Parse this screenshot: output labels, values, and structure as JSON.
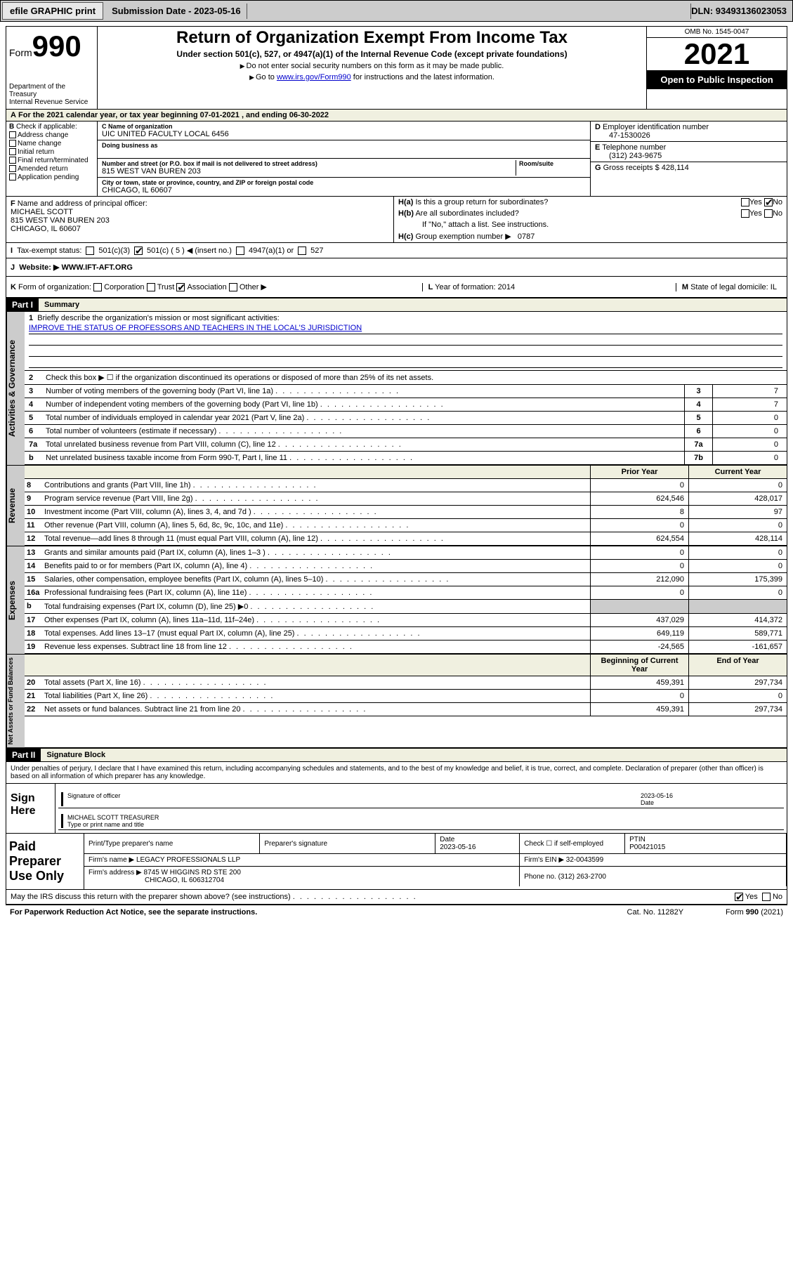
{
  "toolbar": {
    "efile_btn": "efile GRAPHIC print",
    "sub_date_label": "Submission Date - ",
    "sub_date": "2023-05-16",
    "dln_label": "DLN: ",
    "dln": "93493136023053"
  },
  "header": {
    "form_label": "Form",
    "form_num": "990",
    "dept": "Department of the Treasury\nInternal Revenue Service",
    "title": "Return of Organization Exempt From Income Tax",
    "sub": "Under section 501(c), 527, or 4947(a)(1) of the Internal Revenue Code (except private foundations)",
    "note1": "Do not enter social security numbers on this form as it may be made public.",
    "note2_a": "Go to ",
    "note2_link": "www.irs.gov/Form990",
    "note2_b": " for instructions and the latest information.",
    "omb": "OMB No. 1545-0047",
    "year": "2021",
    "inspect": "Open to Public Inspection"
  },
  "row_a": "For the 2021 calendar year, or tax year beginning 07-01-2021  , and ending 06-30-2022",
  "b": {
    "hdr": "Check if applicable:",
    "items": [
      "Address change",
      "Name change",
      "Initial return",
      "Final return/terminated",
      "Amended return",
      "Application pending"
    ]
  },
  "c": {
    "name_lbl": "Name of organization",
    "name": "UIC UNITED FACULTY LOCAL 6456",
    "dba_lbl": "Doing business as",
    "dba": "",
    "addr_lbl": "Number and street (or P.O. box if mail is not delivered to street address)",
    "addr": "815 WEST VAN BUREN 203",
    "room_lbl": "Room/suite",
    "city_lbl": "City or town, state or province, country, and ZIP or foreign postal code",
    "city": "CHICAGO, IL  60607"
  },
  "d": {
    "ein_lbl": "Employer identification number",
    "ein": "47-1530026",
    "phone_lbl": "Telephone number",
    "phone": "(312) 243-9675",
    "gross_lbl": "Gross receipts $",
    "gross": "428,114"
  },
  "f": {
    "lbl": "Name and address of principal officer:",
    "name": "MICHAEL SCOTT",
    "addr": "815 WEST VAN BUREN 203",
    "city": "CHICAGO, IL  60607"
  },
  "h": {
    "a_lbl": "Is this a group return for subordinates?",
    "a_no": "No",
    "b_lbl": "Are all subordinates included?",
    "b_note": "If \"No,\" attach a list. See instructions.",
    "c_lbl": "Group exemption number ▶",
    "c_val": "0787",
    "yes": "Yes",
    "no": "No"
  },
  "i": {
    "lbl": "Tax-exempt status:",
    "o1": "501(c)(3)",
    "o2": "501(c) ( 5 ) ◀ (insert no.)",
    "o3": "4947(a)(1) or",
    "o4": "527"
  },
  "j": {
    "lbl": "Website: ▶",
    "val": "WWW.IFT-AFT.ORG"
  },
  "k": {
    "lbl": "Form of organization:",
    "o1": "Corporation",
    "o2": "Trust",
    "o3": "Association",
    "o4": "Other ▶",
    "l_lbl": "Year of formation:",
    "l_val": "2014",
    "m_lbl": "State of legal domicile:",
    "m_val": "IL"
  },
  "part1": {
    "hdr": "Part I",
    "title": "Summary",
    "side_gov": "Activities & Governance",
    "side_rev": "Revenue",
    "side_exp": "Expenses",
    "side_net": "Net Assets or Fund Balances",
    "l1": "Briefly describe the organization's mission or most significant activities:",
    "l1_val": "IMPROVE THE STATUS OF PROFESSORS AND TEACHERS IN THE LOCAL'S JURISDICTION",
    "l2": "Check this box ▶ ☐ if the organization discontinued its operations or disposed of more than 25% of its net assets.",
    "rows_gov": [
      {
        "n": "3",
        "t": "Number of voting members of the governing body (Part VI, line 1a)",
        "b": "3",
        "v": "7"
      },
      {
        "n": "4",
        "t": "Number of independent voting members of the governing body (Part VI, line 1b)",
        "b": "4",
        "v": "7"
      },
      {
        "n": "5",
        "t": "Total number of individuals employed in calendar year 2021 (Part V, line 2a)",
        "b": "5",
        "v": "0"
      },
      {
        "n": "6",
        "t": "Total number of volunteers (estimate if necessary)",
        "b": "6",
        "v": "0"
      },
      {
        "n": "7a",
        "t": "Total unrelated business revenue from Part VIII, column (C), line 12",
        "b": "7a",
        "v": "0"
      },
      {
        "n": "b",
        "t": "Net unrelated business taxable income from Form 990-T, Part I, line 11",
        "b": "7b",
        "v": "0"
      }
    ],
    "col_py": "Prior Year",
    "col_cy": "Current Year",
    "rows_rev": [
      {
        "n": "8",
        "t": "Contributions and grants (Part VIII, line 1h)",
        "py": "0",
        "cy": "0"
      },
      {
        "n": "9",
        "t": "Program service revenue (Part VIII, line 2g)",
        "py": "624,546",
        "cy": "428,017"
      },
      {
        "n": "10",
        "t": "Investment income (Part VIII, column (A), lines 3, 4, and 7d )",
        "py": "8",
        "cy": "97"
      },
      {
        "n": "11",
        "t": "Other revenue (Part VIII, column (A), lines 5, 6d, 8c, 9c, 10c, and 11e)",
        "py": "0",
        "cy": "0"
      },
      {
        "n": "12",
        "t": "Total revenue—add lines 8 through 11 (must equal Part VIII, column (A), line 12)",
        "py": "624,554",
        "cy": "428,114"
      }
    ],
    "rows_exp": [
      {
        "n": "13",
        "t": "Grants and similar amounts paid (Part IX, column (A), lines 1–3 )",
        "py": "0",
        "cy": "0"
      },
      {
        "n": "14",
        "t": "Benefits paid to or for members (Part IX, column (A), line 4)",
        "py": "0",
        "cy": "0"
      },
      {
        "n": "15",
        "t": "Salaries, other compensation, employee benefits (Part IX, column (A), lines 5–10)",
        "py": "212,090",
        "cy": "175,399"
      },
      {
        "n": "16a",
        "t": "Professional fundraising fees (Part IX, column (A), line 11e)",
        "py": "0",
        "cy": "0"
      },
      {
        "n": "b",
        "t": "Total fundraising expenses (Part IX, column (D), line 25) ▶0",
        "py": "",
        "cy": ""
      },
      {
        "n": "17",
        "t": "Other expenses (Part IX, column (A), lines 11a–11d, 11f–24e)",
        "py": "437,029",
        "cy": "414,372"
      },
      {
        "n": "18",
        "t": "Total expenses. Add lines 13–17 (must equal Part IX, column (A), line 25)",
        "py": "649,119",
        "cy": "589,771"
      },
      {
        "n": "19",
        "t": "Revenue less expenses. Subtract line 18 from line 12",
        "py": "-24,565",
        "cy": "-161,657"
      }
    ],
    "col_boy": "Beginning of Current Year",
    "col_eoy": "End of Year",
    "rows_net": [
      {
        "n": "20",
        "t": "Total assets (Part X, line 16)",
        "py": "459,391",
        "cy": "297,734"
      },
      {
        "n": "21",
        "t": "Total liabilities (Part X, line 26)",
        "py": "0",
        "cy": "0"
      },
      {
        "n": "22",
        "t": "Net assets or fund balances. Subtract line 21 from line 20",
        "py": "459,391",
        "cy": "297,734"
      }
    ]
  },
  "part2": {
    "hdr": "Part II",
    "title": "Signature Block",
    "decl": "Under penalties of perjury, I declare that I have examined this return, including accompanying schedules and statements, and to the best of my knowledge and belief, it is true, correct, and complete. Declaration of preparer (other than officer) is based on all information of which preparer has any knowledge.",
    "sign_here": "Sign Here",
    "sig_lbl": "Signature of officer",
    "date_lbl": "Date",
    "sig_date": "2023-05-16",
    "name_lbl": "Type or print name and title",
    "name_val": "MICHAEL SCOTT TREASURER",
    "paid_hdr": "Paid Preparer Use Only",
    "p_name_lbl": "Print/Type preparer's name",
    "p_sig_lbl": "Preparer's signature",
    "p_date_lbl": "Date",
    "p_date": "2023-05-16",
    "p_check_lbl": "Check ☐ if self-employed",
    "ptin_lbl": "PTIN",
    "ptin": "P00421015",
    "firm_name_lbl": "Firm's name  ▶",
    "firm_name": "LEGACY PROFESSIONALS LLP",
    "firm_ein_lbl": "Firm's EIN ▶",
    "firm_ein": "32-0043599",
    "firm_addr_lbl": "Firm's address ▶",
    "firm_addr": "8745 W HIGGINS RD STE 200",
    "firm_city": "CHICAGO, IL  606312704",
    "phone_lbl": "Phone no.",
    "phone": "(312) 263-2700",
    "discuss": "May the IRS discuss this return with the preparer shown above? (see instructions)",
    "yes": "Yes",
    "no": "No"
  },
  "footer": {
    "l": "For Paperwork Reduction Act Notice, see the separate instructions.",
    "m": "Cat. No. 11282Y",
    "r": "Form 990 (2021)"
  }
}
